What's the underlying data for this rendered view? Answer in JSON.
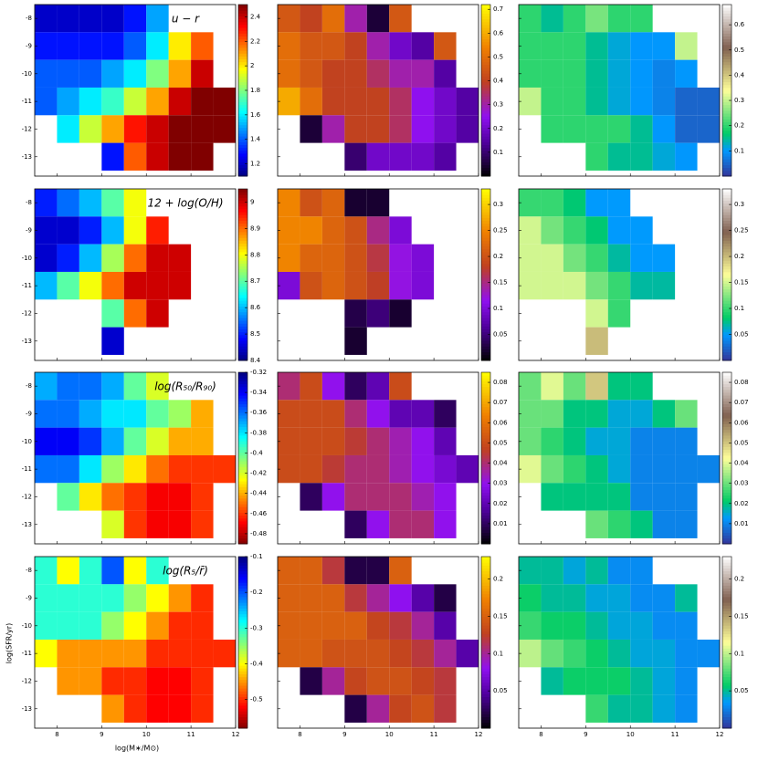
{
  "chart_data": {
    "type": "heatmap",
    "xlabel": "log(M∗/M⊙)",
    "ylabel": "log(SFR/yr)",
    "xlim": [
      7.5,
      12
    ],
    "ylim": [
      -13.7,
      -7.5
    ],
    "xticks": [
      8,
      9,
      10,
      11,
      12
    ],
    "yticks": [
      -13,
      -12,
      -11,
      -10,
      -9,
      -8
    ],
    "x_bins": [
      7.5,
      8,
      8.5,
      9,
      9.5,
      10,
      10.5,
      11,
      11.5,
      12
    ],
    "y_bins": [
      -7.5,
      -8.5,
      -9.5,
      -10.5,
      -11.5,
      -12.5,
      -13.5
    ],
    "panels": [
      {
        "title": "u − r",
        "colormap": "jet",
        "clim": [
          1.1,
          2.5
        ],
        "cticks": [
          1.2,
          1.4,
          1.6,
          1.8,
          2.0,
          2.2,
          2.4
        ],
        "values": [
          [
            1.2,
            1.2,
            1.2,
            1.2,
            1.3,
            1.5,
            null,
            null,
            null
          ],
          [
            1.3,
            1.3,
            1.3,
            1.3,
            1.4,
            1.6,
            2.0,
            2.2,
            null
          ],
          [
            1.4,
            1.4,
            1.4,
            1.5,
            1.6,
            1.8,
            2.1,
            2.4,
            null
          ],
          [
            1.4,
            1.5,
            1.6,
            1.7,
            1.9,
            2.1,
            2.4,
            2.5,
            2.5
          ],
          [
            null,
            1.6,
            1.9,
            2.1,
            2.3,
            2.4,
            2.5,
            2.5,
            2.5
          ],
          [
            null,
            null,
            null,
            1.3,
            2.2,
            2.4,
            2.5,
            2.5,
            null
          ]
        ]
      },
      {
        "colormap": "gnuplot",
        "clim": [
          0,
          0.72
        ],
        "cticks": [
          0.1,
          0.2,
          0.3,
          0.4,
          0.5,
          0.6,
          0.7
        ],
        "values": [
          [
            0.45,
            0.4,
            0.5,
            0.3,
            0.05,
            0.45,
            null,
            null,
            null
          ],
          [
            0.5,
            0.45,
            0.45,
            0.4,
            0.3,
            0.2,
            0.15,
            0.45,
            null
          ],
          [
            0.5,
            0.45,
            0.4,
            0.4,
            0.35,
            0.3,
            0.3,
            0.15,
            null
          ],
          [
            0.6,
            0.5,
            0.4,
            0.4,
            0.4,
            0.35,
            0.25,
            0.2,
            0.15
          ],
          [
            null,
            0.05,
            0.3,
            0.4,
            0.4,
            0.35,
            0.25,
            0.2,
            0.15
          ],
          [
            null,
            null,
            null,
            0.1,
            0.2,
            0.2,
            0.2,
            0.15,
            null
          ]
        ]
      },
      {
        "colormap": "terrain",
        "clim": [
          0,
          0.68
        ],
        "cticks": [
          0.1,
          0.2,
          0.3,
          0.4,
          0.5,
          0.6
        ],
        "values": [
          [
            0.2,
            0.15,
            0.2,
            0.25,
            0.2,
            0.2,
            null,
            null,
            null
          ],
          [
            0.2,
            0.2,
            0.2,
            0.15,
            0.12,
            0.1,
            0.1,
            0.3,
            null
          ],
          [
            0.2,
            0.2,
            0.2,
            0.15,
            0.12,
            0.1,
            0.08,
            0.1,
            null
          ],
          [
            0.3,
            0.2,
            0.2,
            0.15,
            0.12,
            0.1,
            0.08,
            0.05,
            0.05
          ],
          [
            null,
            0.2,
            0.2,
            0.2,
            0.2,
            0.15,
            0.1,
            0.05,
            0.05
          ],
          [
            null,
            null,
            null,
            0.2,
            0.15,
            0.15,
            0.12,
            0.1,
            null
          ]
        ]
      },
      {
        "title": "12 + log(O/H)",
        "colormap": "jet",
        "clim": [
          8.4,
          9.05
        ],
        "cticks": [
          8.4,
          8.5,
          8.6,
          8.7,
          8.8,
          8.9,
          9.0
        ],
        "values": [
          [
            8.5,
            8.55,
            8.6,
            8.7,
            8.8,
            null,
            null,
            null,
            null
          ],
          [
            8.45,
            8.45,
            8.5,
            8.6,
            8.8,
            8.95,
            null,
            null,
            null
          ],
          [
            8.45,
            8.5,
            8.6,
            8.75,
            8.9,
            9.0,
            9.0,
            null,
            null
          ],
          [
            8.6,
            8.7,
            8.8,
            8.9,
            9.0,
            9.0,
            9.0,
            null,
            null
          ],
          [
            null,
            null,
            null,
            8.7,
            8.9,
            9.0,
            null,
            null,
            null
          ],
          [
            null,
            null,
            null,
            8.45,
            null,
            null,
            null,
            null,
            null
          ]
        ]
      },
      {
        "colormap": "gnuplot",
        "clim": [
          0,
          0.33
        ],
        "cticks": [
          0.05,
          0.1,
          0.15,
          0.2,
          0.25,
          0.3
        ],
        "values": [
          [
            0.25,
            0.2,
            0.22,
            0.02,
            0.02,
            null,
            null,
            null,
            null
          ],
          [
            0.25,
            0.25,
            0.22,
            0.2,
            0.15,
            0.1,
            null,
            null,
            null
          ],
          [
            0.25,
            0.22,
            0.22,
            0.2,
            0.17,
            0.12,
            0.1,
            null,
            null
          ],
          [
            0.1,
            0.2,
            0.22,
            0.2,
            0.18,
            0.12,
            0.1,
            null,
            null
          ],
          [
            null,
            null,
            null,
            0.03,
            0.05,
            0.02,
            null,
            null,
            null
          ],
          [
            null,
            null,
            null,
            0.02,
            null,
            null,
            null,
            null,
            null
          ]
        ]
      },
      {
        "colormap": "terrain",
        "clim": [
          0,
          0.33
        ],
        "cticks": [
          0.05,
          0.1,
          0.15,
          0.2,
          0.25,
          0.3
        ],
        "values": [
          [
            0.1,
            0.1,
            0.08,
            0.05,
            0.05,
            null,
            null,
            null,
            null
          ],
          [
            0.15,
            0.12,
            0.1,
            0.08,
            0.05,
            0.05,
            null,
            null,
            null
          ],
          [
            0.15,
            0.15,
            0.12,
            0.1,
            0.07,
            0.05,
            0.05,
            null,
            null
          ],
          [
            0.15,
            0.15,
            0.15,
            0.12,
            0.1,
            0.07,
            0.07,
            null,
            null
          ],
          [
            null,
            null,
            null,
            0.15,
            0.1,
            null,
            null,
            null,
            null
          ],
          [
            null,
            null,
            null,
            0.2,
            null,
            null,
            null,
            null,
            null
          ]
        ]
      },
      {
        "title": "log(R₅₀/R₉₀)",
        "colormap": "jet_r",
        "clim": [
          -0.49,
          -0.32
        ],
        "cticks": [
          -0.48,
          -0.46,
          -0.44,
          -0.42,
          -0.4,
          -0.38,
          -0.36,
          -0.34,
          -0.32
        ],
        "values": [
          [
            -0.37,
            -0.36,
            -0.36,
            -0.37,
            -0.4,
            -0.42,
            null,
            null,
            null
          ],
          [
            -0.36,
            -0.36,
            -0.37,
            -0.38,
            -0.38,
            -0.4,
            -0.41,
            -0.44,
            null
          ],
          [
            -0.34,
            -0.34,
            -0.35,
            -0.37,
            -0.4,
            -0.42,
            -0.44,
            -0.44,
            null
          ],
          [
            -0.36,
            -0.36,
            -0.38,
            -0.41,
            -0.43,
            -0.45,
            -0.46,
            -0.46,
            -0.46
          ],
          [
            null,
            -0.4,
            -0.43,
            -0.45,
            -0.46,
            -0.47,
            -0.47,
            -0.46,
            null
          ],
          [
            null,
            null,
            null,
            -0.42,
            -0.46,
            -0.47,
            -0.47,
            -0.46,
            null
          ]
        ]
      },
      {
        "colormap": "gnuplot",
        "clim": [
          0,
          0.085
        ],
        "cticks": [
          0.01,
          0.02,
          0.03,
          0.04,
          0.05,
          0.06,
          0.07,
          0.08
        ],
        "values": [
          [
            0.04,
            0.05,
            0.03,
            0.01,
            0.02,
            0.05,
            null,
            null,
            null
          ],
          [
            0.05,
            0.05,
            0.05,
            0.04,
            0.03,
            0.02,
            0.02,
            0.01,
            null
          ],
          [
            0.05,
            0.05,
            0.05,
            0.045,
            0.04,
            0.035,
            0.03,
            0.02,
            null
          ],
          [
            0.05,
            0.05,
            0.045,
            0.04,
            0.04,
            0.035,
            0.03,
            0.025,
            0.02
          ],
          [
            null,
            0.01,
            0.03,
            0.04,
            0.04,
            0.04,
            0.035,
            0.03,
            null
          ],
          [
            null,
            null,
            null,
            0.01,
            0.03,
            0.04,
            0.04,
            0.03,
            null
          ]
        ]
      },
      {
        "colormap": "terrain",
        "clim": [
          0,
          0.085
        ],
        "cticks": [
          0.01,
          0.02,
          0.03,
          0.04,
          0.05,
          0.06,
          0.07,
          0.08
        ],
        "values": [
          [
            0.03,
            0.04,
            0.03,
            0.05,
            0.02,
            0.02,
            null,
            null,
            null
          ],
          [
            0.03,
            0.03,
            0.02,
            0.02,
            0.015,
            0.015,
            0.02,
            0.03,
            null
          ],
          [
            0.03,
            0.025,
            0.02,
            0.015,
            0.015,
            0.01,
            0.01,
            0.01,
            null
          ],
          [
            0.04,
            0.03,
            0.025,
            0.02,
            0.015,
            0.01,
            0.01,
            0.01,
            0.01
          ],
          [
            null,
            0.02,
            0.02,
            0.02,
            0.02,
            0.01,
            0.01,
            0.01,
            null
          ],
          [
            null,
            null,
            null,
            0.03,
            0.025,
            0.02,
            0.01,
            0.01,
            null
          ]
        ]
      },
      {
        "title": "log(R₅/r̄)",
        "colormap": "jet_r",
        "clim": [
          -0.58,
          -0.1
        ],
        "cticks": [
          -0.5,
          -0.4,
          -0.3,
          -0.2,
          -0.1
        ],
        "values": [
          [
            -0.3,
            -0.4,
            -0.3,
            -0.2,
            -0.4,
            -0.3,
            null,
            null,
            null
          ],
          [
            -0.3,
            -0.3,
            -0.3,
            -0.3,
            -0.35,
            -0.4,
            -0.45,
            -0.5,
            null
          ],
          [
            -0.3,
            -0.3,
            -0.3,
            -0.35,
            -0.4,
            -0.45,
            -0.5,
            -0.5,
            null
          ],
          [
            -0.4,
            -0.45,
            -0.45,
            -0.45,
            -0.45,
            -0.5,
            -0.5,
            -0.5,
            -0.5
          ],
          [
            null,
            -0.45,
            -0.45,
            -0.5,
            -0.5,
            -0.52,
            -0.52,
            -0.5,
            null
          ],
          [
            null,
            null,
            null,
            -0.45,
            -0.5,
            -0.52,
            -0.52,
            -0.5,
            null
          ]
        ]
      },
      {
        "colormap": "gnuplot",
        "clim": [
          0,
          0.23
        ],
        "cticks": [
          0.05,
          0.1,
          0.15,
          0.2
        ],
        "values": [
          [
            0.15,
            0.15,
            0.12,
            0.02,
            0.02,
            0.15,
            null,
            null,
            null
          ],
          [
            0.15,
            0.15,
            0.15,
            0.12,
            0.1,
            0.08,
            0.05,
            0.02,
            null
          ],
          [
            0.15,
            0.15,
            0.15,
            0.15,
            0.13,
            0.12,
            0.1,
            0.05,
            null
          ],
          [
            0.15,
            0.15,
            0.14,
            0.14,
            0.14,
            0.13,
            0.12,
            0.1,
            0.05
          ],
          [
            null,
            0.02,
            0.1,
            0.13,
            0.14,
            0.14,
            0.13,
            0.12,
            null
          ],
          [
            null,
            null,
            null,
            0.02,
            0.1,
            0.13,
            0.14,
            0.12,
            null
          ]
        ]
      },
      {
        "colormap": "terrain",
        "clim": [
          0,
          0.23
        ],
        "cticks": [
          0.05,
          0.1,
          0.15,
          0.2
        ],
        "values": [
          [
            0.05,
            0.05,
            0.04,
            0.05,
            0.03,
            0.03,
            null,
            null,
            null
          ],
          [
            0.06,
            0.05,
            0.05,
            0.04,
            0.04,
            0.03,
            0.03,
            0.05,
            null
          ],
          [
            0.07,
            0.06,
            0.06,
            0.05,
            0.04,
            0.04,
            0.03,
            0.03,
            null
          ],
          [
            0.1,
            0.08,
            0.07,
            0.06,
            0.05,
            0.04,
            0.04,
            0.03,
            0.03
          ],
          [
            null,
            0.05,
            0.06,
            0.06,
            0.06,
            0.05,
            0.04,
            0.03,
            null
          ],
          [
            null,
            null,
            null,
            0.07,
            0.05,
            0.05,
            0.04,
            0.03,
            null
          ]
        ]
      }
    ]
  }
}
